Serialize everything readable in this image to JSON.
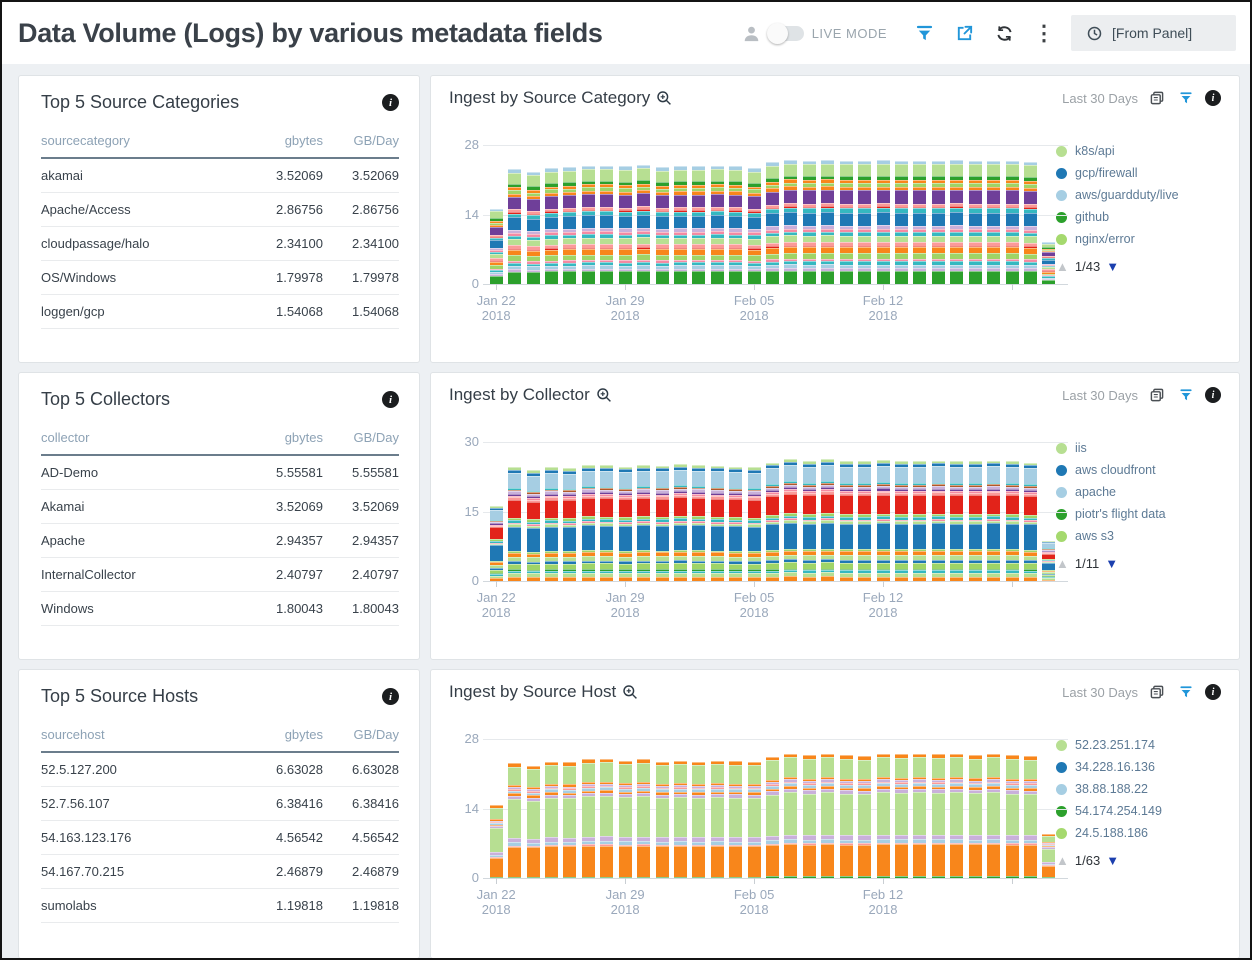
{
  "header": {
    "title": "Data Volume (Logs) by various metadata fields",
    "live_mode_label": "LIVE MODE",
    "time_selector": "[From Panel]"
  },
  "tables": [
    {
      "title": "Top 5 Source Categories",
      "columns": [
        "sourcecategory",
        "gbytes",
        "GB/Day"
      ],
      "rows": [
        [
          "akamai",
          "3.52069",
          "3.52069"
        ],
        [
          "Apache/Access",
          "2.86756",
          "2.86756"
        ],
        [
          "cloudpassage/halo",
          "2.34100",
          "2.34100"
        ],
        [
          "OS/Windows",
          "1.79978",
          "1.79978"
        ],
        [
          "loggen/gcp",
          "1.54068",
          "1.54068"
        ]
      ]
    },
    {
      "title": "Top 5 Collectors",
      "columns": [
        "collector",
        "gbytes",
        "GB/Day"
      ],
      "rows": [
        [
          "AD-Demo",
          "5.55581",
          "5.55581"
        ],
        [
          "Akamai",
          "3.52069",
          "3.52069"
        ],
        [
          "Apache",
          "2.94357",
          "2.94357"
        ],
        [
          "InternalCollector",
          "2.40797",
          "2.40797"
        ],
        [
          "Windows",
          "1.80043",
          "1.80043"
        ]
      ]
    },
    {
      "title": "Top 5 Source Hosts",
      "columns": [
        "sourcehost",
        "gbytes",
        "GB/Day"
      ],
      "rows": [
        [
          "52.5.127.200",
          "6.63028",
          "6.63028"
        ],
        [
          "52.7.56.107",
          "6.38416",
          "6.38416"
        ],
        [
          "54.163.123.176",
          "4.56542",
          "4.56542"
        ],
        [
          "54.167.70.215",
          "2.46879",
          "2.46879"
        ],
        [
          "sumolabs",
          "1.19818",
          "1.19818"
        ]
      ]
    }
  ],
  "palette": {
    "green": "#2ca02c",
    "blue": "#1f78b4",
    "lightblue": "#a6cee3",
    "lightgreen": "#b7df92",
    "lightgreen2": "#9fd467",
    "orange": "#f8861b",
    "red": "#e2231a",
    "salmon": "#fb9a99",
    "pink": "#f48aa2",
    "teal": "#35b8c0",
    "lavender": "#c9b0da",
    "purple": "#6f3f99",
    "maroon": "#b05928"
  },
  "chart_data": [
    {
      "type": "bar",
      "stacked": true,
      "title": "Ingest by Source Category",
      "time_range": "Last 30 Days",
      "ylabel": "",
      "xlabel": "",
      "ylim": [
        0,
        28
      ],
      "yticks": [
        0,
        14,
        28
      ],
      "x_ticks": [
        {
          "pos": 0,
          "lines": [
            "Jan 22",
            "2018"
          ]
        },
        {
          "pos": 7,
          "lines": [
            "Jan 29",
            "2018"
          ]
        },
        {
          "pos": 14,
          "lines": [
            "Feb 05",
            "2018"
          ]
        },
        {
          "pos": 21,
          "lines": [
            "Feb 12",
            "2018"
          ]
        },
        {
          "pos": 28,
          "lines": []
        }
      ],
      "totals": [
        15.2,
        23.2,
        22.6,
        23.4,
        23.6,
        23.9,
        23.9,
        23.7,
        24.1,
        23.6,
        23.8,
        23.8,
        23.9,
        23.8,
        23.4,
        24.6,
        25.1,
        24.9,
        25.1,
        24.9,
        24.9,
        25.0,
        24.9,
        24.9,
        24.9,
        25.0,
        24.9,
        24.9,
        24.9,
        24.7,
        8.4
      ],
      "segments_pattern": [
        [
          "green",
          1.9
        ],
        [
          "lavender",
          0.35
        ],
        [
          "lightblue",
          0.5
        ],
        [
          "teal",
          0.45
        ],
        [
          "pink",
          0.35
        ],
        [
          "lightgreen2",
          0.8
        ],
        [
          "orange",
          0.85
        ],
        [
          "red",
          0.2
        ],
        [
          "salmon",
          0.55
        ],
        [
          "lightgreen",
          0.9
        ],
        [
          "teal",
          0.5
        ],
        [
          "pink",
          0.45
        ],
        [
          "lavender",
          0.5
        ],
        [
          "blue",
          1.85
        ],
        [
          "teal",
          0.6
        ],
        [
          "red",
          0.25
        ],
        [
          "salmon",
          0.4
        ],
        [
          "purple",
          1.9
        ],
        [
          "orange",
          0.5
        ],
        [
          "lightgreen2",
          0.5
        ],
        [
          "orange",
          0.45
        ],
        [
          "green",
          0.55
        ],
        [
          "lightgreen",
          1.7
        ],
        [
          "lightblue",
          0.55
        ]
      ],
      "legend": [
        {
          "label": "k8s/api",
          "color": "#b7df92"
        },
        {
          "label": "gcp/firewall",
          "color": "#1f78b4"
        },
        {
          "label": "aws/guardduty/live",
          "color": "#a6cee3"
        },
        {
          "label": "github",
          "color": "#2ca02c"
        },
        {
          "label": "nginx/error",
          "color": "#a5d96e"
        }
      ],
      "pagination": "1/43"
    },
    {
      "type": "bar",
      "stacked": true,
      "title": "Ingest by Collector",
      "time_range": "Last 30 Days",
      "ylabel": "",
      "xlabel": "",
      "ylim": [
        0,
        30
      ],
      "yticks": [
        0,
        15,
        30
      ],
      "x_ticks": [
        {
          "pos": 0,
          "lines": [
            "Jan 22",
            "2018"
          ]
        },
        {
          "pos": 7,
          "lines": [
            "Jan 29",
            "2018"
          ]
        },
        {
          "pos": 14,
          "lines": [
            "Feb 05",
            "2018"
          ]
        },
        {
          "pos": 21,
          "lines": [
            "Feb 12",
            "2018"
          ]
        },
        {
          "pos": 28,
          "lines": []
        }
      ],
      "totals": [
        16.2,
        24.6,
        23.9,
        24.6,
        24.4,
        25.1,
        25.0,
        24.7,
        25.1,
        24.9,
        25.3,
        25.1,
        24.9,
        24.7,
        24.6,
        25.6,
        26.4,
        25.9,
        26.4,
        25.9,
        25.9,
        26.1,
        25.9,
        25.9,
        26.0,
        25.9,
        25.9,
        26.0,
        25.9,
        25.6,
        8.6
      ],
      "segments_pattern": [
        [
          "orange",
          0.8
        ],
        [
          "lightgreen",
          0.7
        ],
        [
          "teal",
          0.4
        ],
        [
          "green",
          0.3
        ],
        [
          "lightgreen2",
          1.1
        ],
        [
          "blue",
          0.5
        ],
        [
          "lightgreen",
          0.8
        ],
        [
          "orange",
          0.75
        ],
        [
          "lightgreen2",
          0.35
        ],
        [
          "blue",
          4.6
        ],
        [
          "lightgreen",
          0.45
        ],
        [
          "pink",
          0.3
        ],
        [
          "teal",
          0.5
        ],
        [
          "lightgreen2",
          0.45
        ],
        [
          "red",
          3.4
        ],
        [
          "salmon",
          0.45
        ],
        [
          "pink",
          0.3
        ],
        [
          "purple",
          0.4
        ],
        [
          "lavender",
          0.45
        ],
        [
          "maroon",
          0.3
        ],
        [
          "teal",
          0.3
        ],
        [
          "lightblue",
          2.9
        ],
        [
          "blue",
          0.55
        ],
        [
          "lightgreen",
          0.5
        ]
      ],
      "legend": [
        {
          "label": "iis",
          "color": "#b7df92"
        },
        {
          "label": "aws cloudfront",
          "color": "#1f78b4"
        },
        {
          "label": "apache",
          "color": "#a6cee3"
        },
        {
          "label": "piotr's flight data",
          "color": "#2ca02c"
        },
        {
          "label": "aws s3",
          "color": "#a5d96e"
        }
      ],
      "pagination": "1/11"
    },
    {
      "type": "bar",
      "stacked": true,
      "title": "Ingest by Source Host",
      "time_range": "Last 30 Days",
      "ylabel": "",
      "xlabel": "",
      "ylim": [
        0,
        28
      ],
      "yticks": [
        0,
        14,
        28
      ],
      "x_ticks": [
        {
          "pos": 0,
          "lines": [
            "Jan 22",
            "2018"
          ]
        },
        {
          "pos": 7,
          "lines": [
            "Jan 29",
            "2018"
          ]
        },
        {
          "pos": 14,
          "lines": [
            "Feb 05",
            "2018"
          ]
        },
        {
          "pos": 21,
          "lines": [
            "Feb 12",
            "2018"
          ]
        },
        {
          "pos": 28,
          "lines": []
        }
      ],
      "totals": [
        14.6,
        23.1,
        22.6,
        23.4,
        23.3,
        23.9,
        24.0,
        23.6,
        23.9,
        23.4,
        23.6,
        23.4,
        23.6,
        23.5,
        23.4,
        24.4,
        25.1,
        24.7,
        25.1,
        24.7,
        24.6,
        25.1,
        24.9,
        25.1,
        24.9,
        25.1,
        24.8,
        25.1,
        24.7,
        24.6,
        8.8
      ],
      "segments_pattern": [
        [
          "green",
          0.3
        ],
        [
          "orange",
          6.3
        ],
        [
          "salmon",
          0.25
        ],
        [
          "lightblue",
          0.7
        ],
        [
          "lavender",
          0.9
        ],
        [
          "lightgreen",
          8.2
        ],
        [
          "lavender",
          0.7
        ],
        [
          "orange",
          0.5
        ],
        [
          "lightblue",
          0.6
        ],
        [
          "salmon",
          0.3
        ],
        [
          "lavender",
          0.4
        ],
        [
          "orange",
          0.45
        ],
        [
          "lightgreen",
          3.9
        ],
        [
          "orange",
          0.7
        ]
      ],
      "legend": [
        {
          "label": "52.23.251.174",
          "color": "#b7df92"
        },
        {
          "label": "34.228.16.136",
          "color": "#1f78b4"
        },
        {
          "label": "38.88.188.22",
          "color": "#a6cee3"
        },
        {
          "label": "54.174.254.149",
          "color": "#2ca02c"
        },
        {
          "label": "24.5.188.186",
          "color": "#a5d96e"
        }
      ],
      "pagination": "1/63"
    }
  ]
}
